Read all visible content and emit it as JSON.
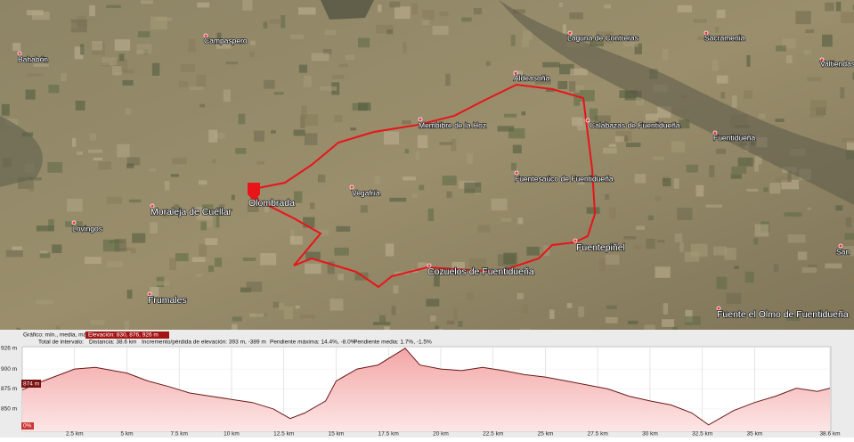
{
  "map": {
    "places": [
      "Bahabón",
      "Campaspero",
      "Laguna de Contreras",
      "Sacramenia",
      "Valtiendas",
      "Aldeasoña",
      "Membibre de la Hoz",
      "Calabazas de Fuentidueña",
      "Fuentidueña",
      "Fuentesaúco de Fuentidueña",
      "Vegafría",
      "Olombrada",
      "Moraleja de Cuéllar",
      "Lovingos",
      "Fuentepiñel",
      "Cozuelos de Fuentidueña",
      "Frumales",
      "Fuente el Olmo de Fuentidueña",
      "San"
    ]
  },
  "profile_header": {
    "graph": "Gráfico: mín., media, máx.",
    "elevation": "Elevación: 830, 876, 926 m",
    "interval": "Total de intervalo:",
    "distance": "Distancia: 38.6 km",
    "gain_loss": "Incremento/pérdida de elevación: 393 m, -389 m",
    "max_slope": "Pendiente máxima: 14.4%, -8.0%",
    "avg_slope": "Pendiente media: 1.7%, -1.5%"
  },
  "cursor": {
    "elevation_label": "874 m",
    "slope_label": "0%"
  },
  "chart_data": {
    "type": "area",
    "x": [
      0,
      1,
      2,
      2.5,
      3.5,
      5,
      6,
      7,
      8,
      9,
      10,
      11,
      12,
      12.8,
      13.5,
      14.5,
      15,
      16,
      17,
      18.3,
      19,
      20,
      21,
      22,
      23,
      24,
      25,
      26,
      27,
      28,
      29,
      30,
      31,
      32,
      32.8,
      34,
      35,
      36,
      37,
      38,
      38.6
    ],
    "values": [
      874,
      885,
      895,
      900,
      902,
      895,
      885,
      878,
      870,
      866,
      862,
      858,
      850,
      838,
      845,
      860,
      885,
      900,
      905,
      926,
      905,
      900,
      898,
      902,
      898,
      893,
      890,
      885,
      880,
      875,
      866,
      860,
      855,
      845,
      830,
      848,
      858,
      866,
      876,
      872,
      876
    ],
    "color": "#6b1a1a",
    "xlim": [
      0,
      38.6
    ],
    "ylim": [
      822,
      928
    ],
    "xticks": [
      {
        "value": 2.5,
        "label": "2.5 km"
      },
      {
        "value": 5,
        "label": "5 km"
      },
      {
        "value": 7.5,
        "label": "7.5 km"
      },
      {
        "value": 10,
        "label": "10 km"
      },
      {
        "value": 12.5,
        "label": "12.5 km"
      },
      {
        "value": 15,
        "label": "15 km"
      },
      {
        "value": 17.5,
        "label": "17.5 km"
      },
      {
        "value": 20,
        "label": "20 km"
      },
      {
        "value": 22.5,
        "label": "22.5 km"
      },
      {
        "value": 25,
        "label": "25 km"
      },
      {
        "value": 27.5,
        "label": "27.5 km"
      },
      {
        "value": 30,
        "label": "30 km"
      },
      {
        "value": 32.5,
        "label": "32.5 km"
      },
      {
        "value": 35,
        "label": "35 km"
      },
      {
        "value": 38.6,
        "label": "38.6 km"
      }
    ],
    "yticks": [
      {
        "value": 926,
        "label": "926 m"
      },
      {
        "value": 900,
        "label": "900 m"
      },
      {
        "value": 875,
        "label": "875 m"
      },
      {
        "value": 850,
        "label": "850 m"
      }
    ],
    "grid": true
  }
}
